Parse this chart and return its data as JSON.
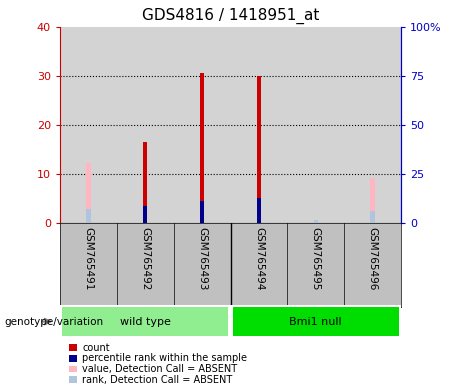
{
  "title": "GDS4816 / 1418951_at",
  "samples": [
    "GSM765491",
    "GSM765492",
    "GSM765493",
    "GSM765494",
    "GSM765495",
    "GSM765496"
  ],
  "groups": [
    {
      "name": "wild type",
      "indices": [
        0,
        1,
        2
      ],
      "color": "#90ee90"
    },
    {
      "name": "Bmi1 null",
      "indices": [
        3,
        4,
        5
      ],
      "color": "#00dd00"
    }
  ],
  "count_values": [
    null,
    16.5,
    30.5,
    30.0,
    null,
    null
  ],
  "rank_values": [
    null,
    8.5,
    11.2,
    12.5,
    null,
    null
  ],
  "absent_count_values": [
    12.2,
    null,
    null,
    null,
    null,
    9.2
  ],
  "absent_rank_values": [
    7.0,
    null,
    null,
    null,
    1.5,
    6.0
  ],
  "left_ylim": [
    0,
    40
  ],
  "right_ylim": [
    0,
    100
  ],
  "left_yticks": [
    0,
    10,
    20,
    30,
    40
  ],
  "right_yticks": [
    0,
    25,
    50,
    75,
    100
  ],
  "left_ytick_labels": [
    "0",
    "10",
    "20",
    "30",
    "40"
  ],
  "right_ytick_labels": [
    "0",
    "25",
    "50",
    "75",
    "100%"
  ],
  "left_color": "#cc0000",
  "right_color": "#0000cc",
  "bar_width": 0.08,
  "absent_bar_color": "#ffb6c1",
  "absent_rank_color": "#b0c4de",
  "count_color": "#cc0000",
  "rank_color": "#00008b",
  "plot_bg_color": "#d3d3d3",
  "sample_box_color": "#c0c0c0",
  "legend_items": [
    {
      "color": "#cc0000",
      "label": "count"
    },
    {
      "color": "#00008b",
      "label": "percentile rank within the sample"
    },
    {
      "color": "#ffb6c1",
      "label": "value, Detection Call = ABSENT"
    },
    {
      "color": "#b0c4de",
      "label": "rank, Detection Call = ABSENT"
    }
  ]
}
